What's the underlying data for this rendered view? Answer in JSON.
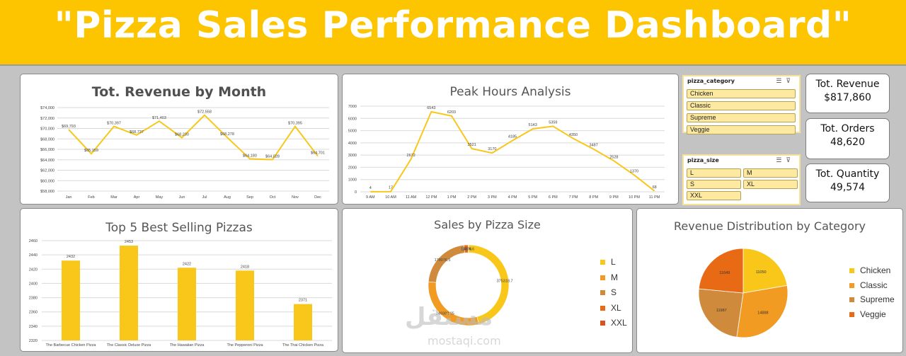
{
  "dashboard_title": "\"Pizza Sales Performance Dashboard\"",
  "colors": {
    "banner": "#fdc500",
    "series": "#f8c71a",
    "L": "#f8c71a",
    "M": "#f29b22",
    "S": "#cf8b3b",
    "XL": "#e86a14",
    "XXL": "#d9531e"
  },
  "slicers": {
    "category": {
      "title": "pizza_category",
      "items": [
        "Chicken",
        "Classic",
        "Supreme",
        "Veggie"
      ]
    },
    "size": {
      "title": "pizza_size",
      "items": [
        "L",
        "M",
        "S",
        "XL",
        "XXL"
      ]
    }
  },
  "kpis": [
    {
      "label": "Tot. Revenue",
      "value": "$817,860"
    },
    {
      "label": "Tot. Orders",
      "value": "48,620"
    },
    {
      "label": "Tot. Quantity",
      "value": "49,574"
    }
  ],
  "watermark": {
    "arabic": "مستقل",
    "latin": "mostaqi.com"
  },
  "chart_data": [
    {
      "id": "revenue_by_month",
      "type": "line",
      "title": "Tot. Revenue by Month",
      "categories": [
        "Jan",
        "Feb",
        "Mar",
        "Apr",
        "May",
        "Jun",
        "Jul",
        "Aug",
        "Sep",
        "Oct",
        "Nov",
        "Dec"
      ],
      "values": [
        69793,
        65159,
        70397,
        68737,
        71403,
        68230,
        72558,
        68278,
        64180,
        64028,
        70395,
        64701
      ],
      "labels": [
        "$69,793",
        "$65,159",
        "$70,397",
        "$68,737",
        "$71,403",
        "$68,230",
        "$72,558",
        "$68,278",
        "$64,180",
        "$64,028",
        "$70,395",
        "$64,701"
      ],
      "ylim": [
        58000,
        74000
      ],
      "yticks": [
        58000,
        60000,
        62000,
        64000,
        66000,
        68000,
        70000,
        72000,
        74000
      ],
      "ytick_labels": [
        "$58,000",
        "$60,000",
        "$62,000",
        "$64,000",
        "$66,000",
        "$68,000",
        "$70,000",
        "$72,000",
        "$74,000"
      ],
      "grid": true
    },
    {
      "id": "peak_hours",
      "type": "line",
      "title": "Peak Hours Analysis",
      "categories": [
        "9 AM",
        "10 AM",
        "11 AM",
        "12 PM",
        "1 PM",
        "2 PM",
        "3 PM",
        "4 PM",
        "5 PM",
        "6 PM",
        "7 PM",
        "8 PM",
        "9 PM",
        "10 PM",
        "11 PM"
      ],
      "values": [
        4,
        17,
        2672,
        6543,
        6203,
        3521,
        3170,
        4185,
        5143,
        5359,
        4350,
        3487,
        2528,
        1370,
        68
      ],
      "ylim": [
        0,
        7000
      ],
      "yticks": [
        0,
        1000,
        2000,
        3000,
        4000,
        5000,
        6000,
        7000
      ],
      "grid": true
    },
    {
      "id": "top5_pizzas",
      "type": "bar",
      "title": "Top 5 Best Selling Pizzas",
      "categories": [
        "The Barbecue Chicken Pizza",
        "The Classic Deluxe Pizza",
        "The Hawaiian Pizza",
        "The Pepperoni Pizza",
        "The Thai Chicken Pizza"
      ],
      "values": [
        2432,
        2453,
        2422,
        2418,
        2371
      ],
      "ylim": [
        2320,
        2460
      ],
      "yticks": [
        2320,
        2340,
        2360,
        2380,
        2400,
        2420,
        2440,
        2460
      ],
      "grid": true
    },
    {
      "id": "sales_by_size",
      "type": "pie",
      "title": "Sales by Pizza Size",
      "donut": true,
      "categories": [
        "L",
        "M",
        "S",
        "XL",
        "XXL"
      ],
      "values": [
        375318.7,
        249382.25,
        178076.5,
        14076,
        1006.6
      ],
      "labels": [
        "375318.7",
        "249382.25",
        "178076.5",
        "14076",
        "1006.6"
      ],
      "legend": "right"
    },
    {
      "id": "revenue_by_category",
      "type": "pie",
      "title": "Revenue Distribution by Category",
      "categories": [
        "Chicken",
        "Classic",
        "Supreme",
        "Veggie"
      ],
      "values": [
        11050,
        14888,
        11987,
        11649
      ],
      "legend": "right"
    }
  ]
}
